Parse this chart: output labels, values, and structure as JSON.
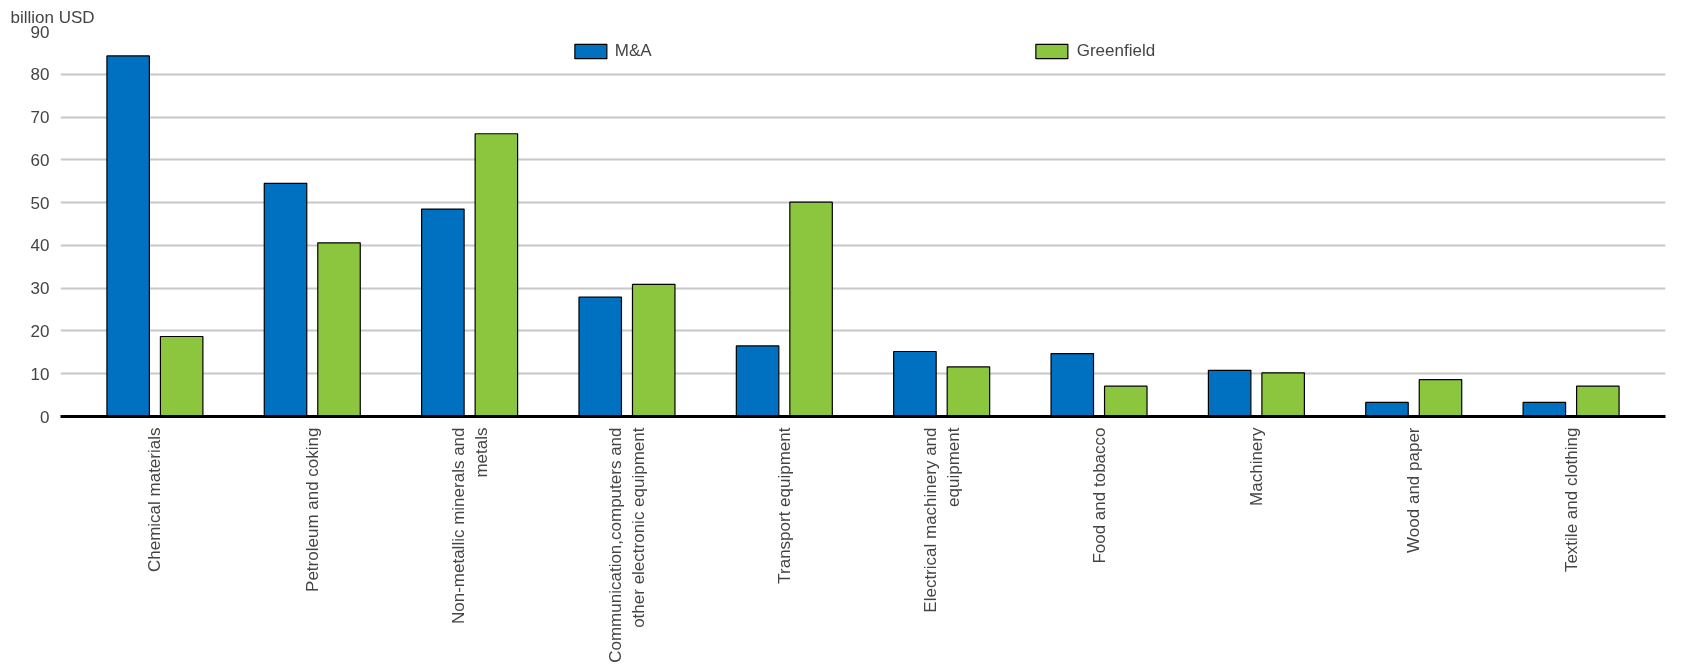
{
  "chart_data": {
    "type": "bar",
    "ylabel": "billion USD",
    "categories": [
      "Chemical materials",
      "Petroleum and coking",
      "Non-metallic minerals and metals",
      "Communication,computers and other electronic equipment",
      "Transport equipment",
      "Electrical machinery and equipment",
      "Food and tobacco",
      "Machinery",
      "Wood and paper",
      "Textile and clothing"
    ],
    "series": [
      {
        "name": "M&A",
        "color": "#0070c0",
        "values": [
          84.3,
          54.5,
          48.5,
          27.9,
          16.5,
          15.2,
          14.7,
          10.8,
          3.3,
          3.3
        ]
      },
      {
        "name": "Greenfield",
        "color": "#8cc63f",
        "values": [
          18.7,
          40.6,
          66.1,
          30.9,
          50.1,
          11.6,
          7.1,
          10.2,
          8.6,
          7.1
        ]
      }
    ],
    "ylim": [
      0,
      90
    ],
    "yticks": [
      0,
      10,
      20,
      30,
      40,
      50,
      60,
      70,
      80,
      90
    ],
    "grid": "y",
    "legend": "top"
  }
}
